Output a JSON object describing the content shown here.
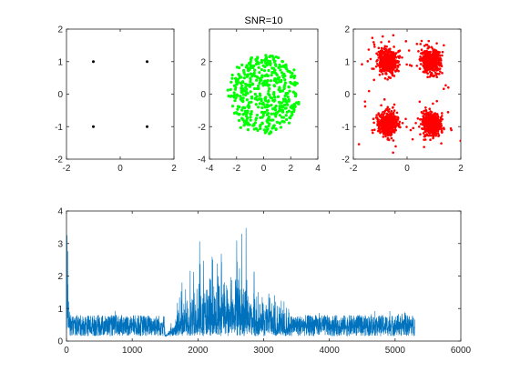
{
  "chart_data": [
    {
      "type": "scatter",
      "title": "",
      "xlabel": "",
      "ylabel": "",
      "xlim": [
        -2,
        2
      ],
      "ylim": [
        -2,
        2
      ],
      "xticks": [
        -2,
        0,
        2
      ],
      "yticks": [
        -2,
        -1,
        0,
        1,
        2
      ],
      "grid": false,
      "series": [
        {
          "color": "#000000",
          "points": [
            [
              -1,
              1
            ],
            [
              1,
              1
            ],
            [
              -1,
              -1
            ],
            [
              1,
              -1
            ]
          ]
        }
      ]
    },
    {
      "type": "scatter",
      "title": "SNR=10",
      "xlabel": "",
      "ylabel": "",
      "xlim": [
        -4,
        4
      ],
      "ylim": [
        -4,
        4
      ],
      "xticks": [
        -4,
        -2,
        0,
        2,
        4
      ],
      "yticks": [
        -4,
        -2,
        0,
        2
      ],
      "grid": false,
      "series": [
        {
          "color": "#00ff00",
          "distribution": "cloud centered at (0, 0), spread about ±2.5 in x and ±2.4 in y",
          "approx_points": 500
        }
      ]
    },
    {
      "type": "scatter",
      "title": "",
      "xlabel": "",
      "ylabel": "",
      "xlim": [
        -2,
        2
      ],
      "ylim": [
        -2,
        2
      ],
      "xticks": [
        -2,
        0,
        2
      ],
      "yticks": [
        -2,
        -1,
        0,
        1,
        2
      ],
      "grid": false,
      "series": [
        {
          "color": "#ff0000",
          "distribution": "four dense clusters around (-0.7, 1), (0.9, 1), (-0.7, -0.9), (0.9, -0.9), spread about ±0.4, with sparse outliers",
          "approx_points": 2000
        }
      ]
    },
    {
      "type": "line",
      "title": "",
      "xlabel": "",
      "ylabel": "",
      "xlim": [
        0,
        6000
      ],
      "ylim": [
        0,
        4
      ],
      "xticks": [
        0,
        1000,
        2000,
        3000,
        4000,
        5000,
        6000
      ],
      "yticks": [
        0,
        1,
        2,
        3,
        4
      ],
      "grid": false,
      "series": [
        {
          "color": "#0072bd",
          "x_range": [
            0,
            5300
          ],
          "description": "noisy signal: initial spike to about 3.8 near x=0–50; baseline about 0.3–0.8 from 0 to 1500; burst region 1500–3400 with peaks reaching about 4.1 near x=2000; baseline again from 3400 to 5300"
        }
      ]
    }
  ]
}
